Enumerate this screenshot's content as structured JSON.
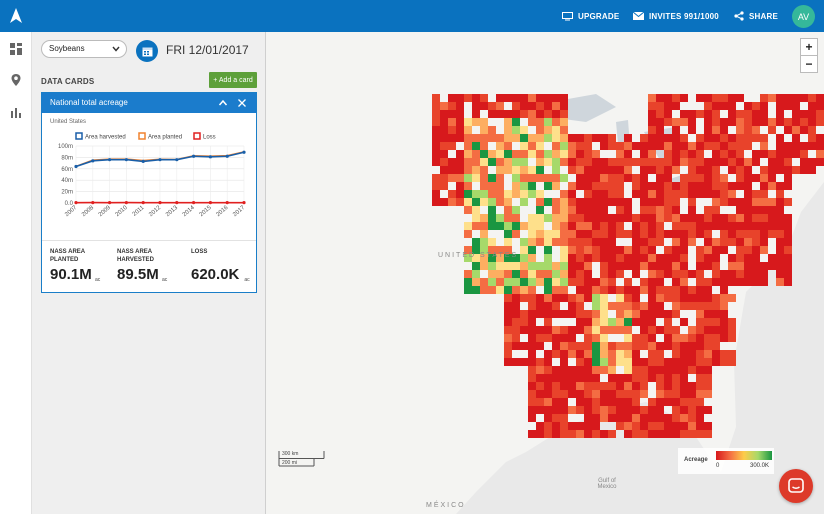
{
  "topbar": {
    "upgrade_label": "UPGRADE",
    "invites_label": "INVITES 991/1000",
    "share_label": "SHARE",
    "avatar_initials": "AV",
    "bar_color": "#0a72bf",
    "avatar_color": "#35b89a"
  },
  "rail": {
    "icons": [
      "dashboard-icon",
      "location-pin-icon",
      "bar-chart-icon"
    ]
  },
  "panel": {
    "crop_select": "Soybeans",
    "date": "FRI 12/01/2017",
    "section_title": "DATA CARDS",
    "add_card_label": "+ Add a card"
  },
  "card": {
    "title": "National total acreage",
    "subtitle": "United States",
    "stats": [
      {
        "label": "NASS AREA PLANTED",
        "value": "90.1M",
        "unit": "ac"
      },
      {
        "label": "NASS AREA HARVESTED",
        "value": "89.5M",
        "unit": "ac"
      },
      {
        "label": "LOSS",
        "value": "620.0K",
        "unit": "ac"
      }
    ]
  },
  "chart_data": {
    "type": "line",
    "x": [
      "2007",
      "2008",
      "2009",
      "2010",
      "2011",
      "2012",
      "2013",
      "2014",
      "2015",
      "2016",
      "2017"
    ],
    "y_ticks": [
      "100m",
      "80m",
      "60m",
      "40m",
      "20m",
      "0.0"
    ],
    "ylim": [
      0,
      100
    ],
    "grid": true,
    "legend_position": "top",
    "series": [
      {
        "name": "Area harvested",
        "color": "#1a5fa8",
        "values": [
          64,
          74,
          76,
          76,
          73,
          76,
          76,
          82,
          81,
          82,
          89
        ]
      },
      {
        "name": "Area planted",
        "color": "#f0822f",
        "values": [
          64.7,
          75.7,
          77.5,
          77.4,
          75,
          77.2,
          76.8,
          83.3,
          82.6,
          83.5,
          90.1
        ]
      },
      {
        "name": "Loss",
        "color": "#e02020",
        "values": [
          0.6,
          0.7,
          0.6,
          0.7,
          0.6,
          0.6,
          0.6,
          0.6,
          0.6,
          0.6,
          0.6
        ]
      }
    ]
  },
  "map": {
    "label_us": "UNITED STATES",
    "label_mexico": "MÉXICO",
    "label_gulf": "Gulf of Mexico",
    "scale_km": "300 km",
    "scale_mi": "200 mi",
    "zoom_in": "+",
    "zoom_out": "−",
    "legend_title": "Acreage",
    "legend_min": "0",
    "legend_max": "300.0K"
  }
}
